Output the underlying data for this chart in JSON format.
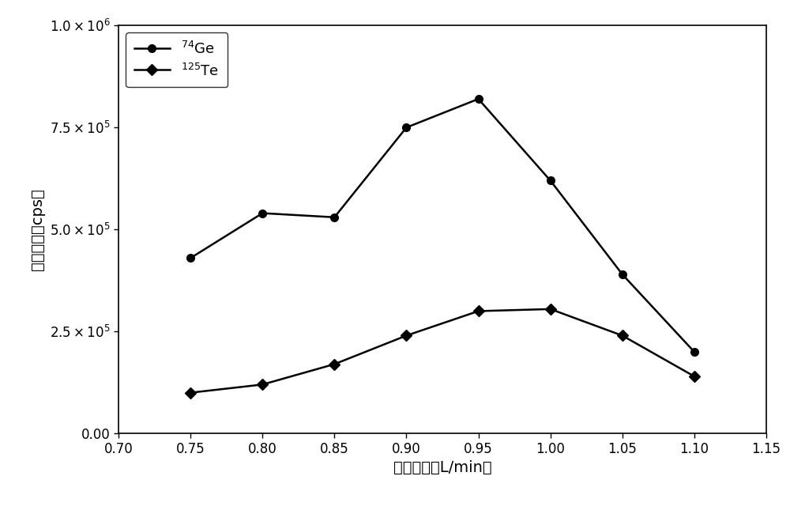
{
  "x_values": [
    0.75,
    0.8,
    0.85,
    0.9,
    0.95,
    1.0,
    1.05,
    1.1
  ],
  "ge74_values": [
    430000,
    540000,
    530000,
    750000,
    820000,
    620000,
    390000,
    200000
  ],
  "te125_values": [
    100000,
    120000,
    170000,
    240000,
    300000,
    305000,
    240000,
    140000
  ],
  "ge74_label": "$^{74}$Ge",
  "te125_label": "$^{125}$Te",
  "xlabel": "载气流速（L/min）",
  "ylabel": "信号强度（cps）",
  "xlim": [
    0.7,
    1.15
  ],
  "ylim": [
    0,
    1000000
  ],
  "xticks": [
    0.7,
    0.75,
    0.8,
    0.85,
    0.9,
    0.95,
    1.0,
    1.05,
    1.1,
    1.15
  ],
  "yticks": [
    0,
    250000,
    500000,
    750000,
    1000000
  ],
  "line_color": "#000000",
  "marker_ge": "o",
  "marker_te": "D",
  "linewidth": 1.8,
  "markersize_ge": 7,
  "markersize_te": 7,
  "legend_fontsize": 13,
  "axis_fontsize": 14,
  "tick_fontsize": 12,
  "background_color": "#ffffff"
}
